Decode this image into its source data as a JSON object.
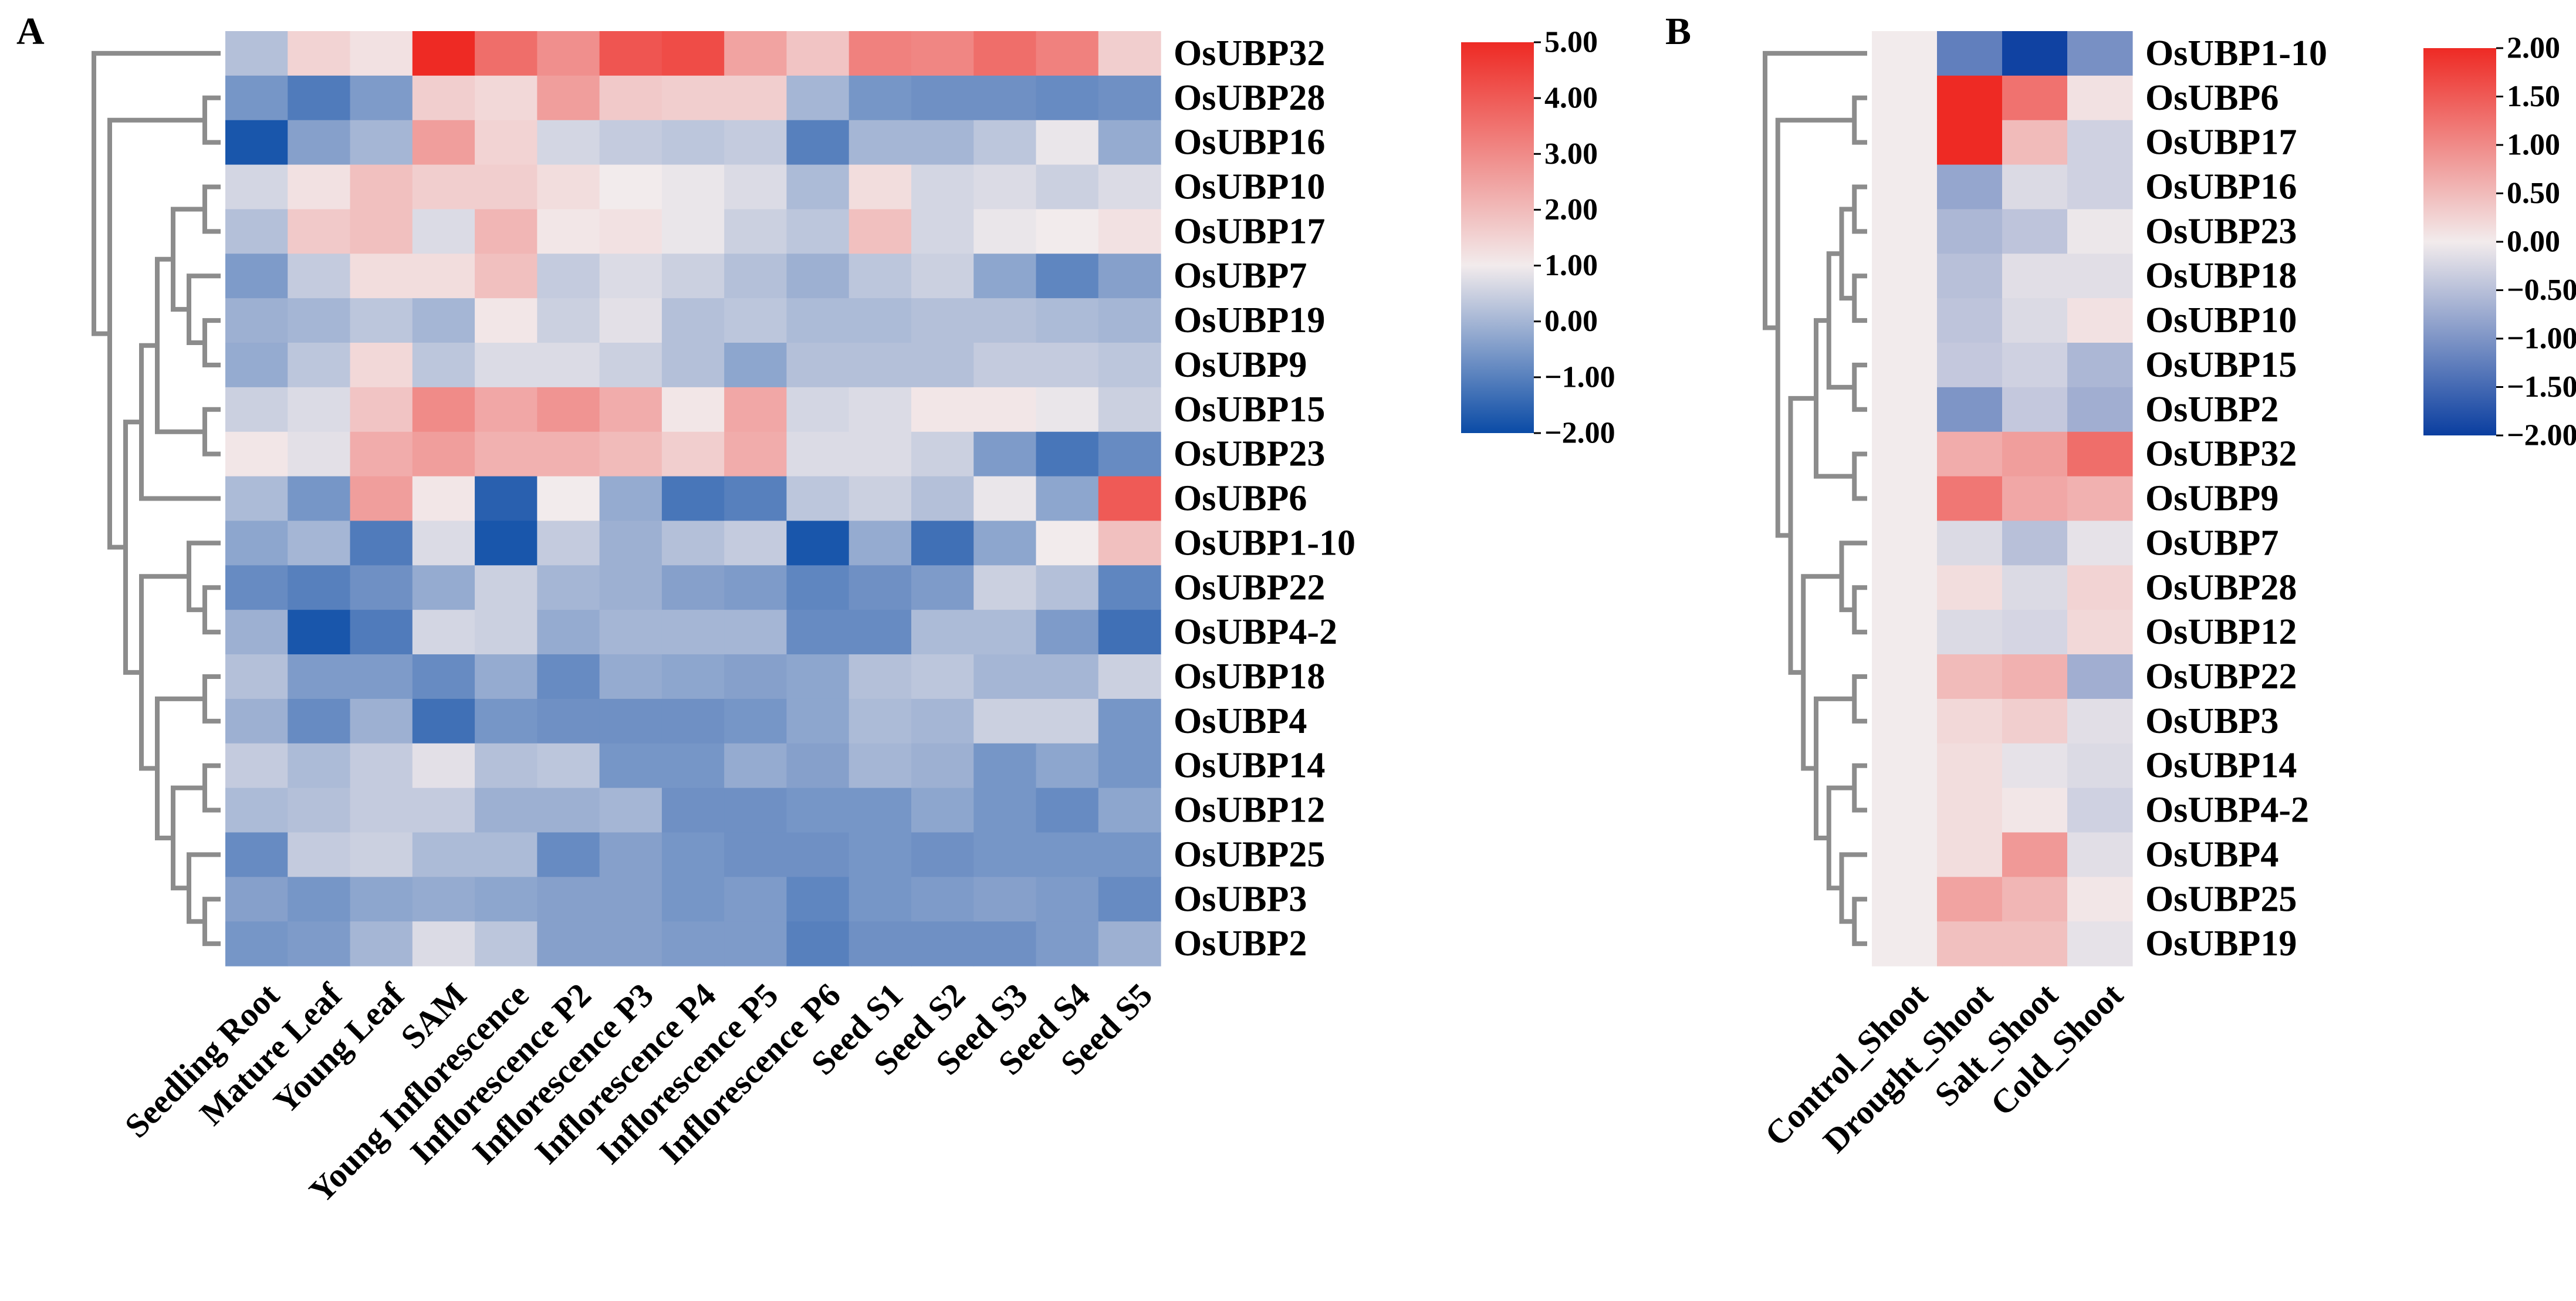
{
  "chart_data": [
    {
      "panel_label": "A",
      "type": "heatmap",
      "title": "",
      "xlabel": "",
      "ylabel": "",
      "columns": [
        "Seedling Root",
        "Mature Leaf",
        "Young Leaf",
        "SAM",
        "Young Inflorescence",
        "Inflorescence P2",
        "Inflorescence P3",
        "Inflorescence P4",
        "Inflorescence P5",
        "Inflorescence P6",
        "Seed S1",
        "Seed S2",
        "Seed S3",
        "Seed S4",
        "Seed S5"
      ],
      "rows": [
        "OsUBP32",
        "OsUBP28",
        "OsUBP16",
        "OsUBP10",
        "OsUBP17",
        "OsUBP7",
        "OsUBP19",
        "OsUBP9",
        "OsUBP15",
        "OsUBP23",
        "OsUBP6",
        "OsUBP1-10",
        "OsUBP22",
        "OsUBP4-2",
        "OsUBP18",
        "OsUBP4",
        "OsUBP14",
        "OsUBP12",
        "OsUBP25",
        "OsUBP3",
        "OsUBP2"
      ],
      "values": [
        [
          0.2,
          1.5,
          1.2,
          5.0,
          3.6,
          2.9,
          4.1,
          4.3,
          2.5,
          1.8,
          3.2,
          3.1,
          3.6,
          3.2,
          1.6
        ],
        [
          -0.6,
          -1.1,
          -0.5,
          1.6,
          1.4,
          2.6,
          1.7,
          1.6,
          1.6,
          0.0,
          -0.6,
          -0.7,
          -0.7,
          -0.8,
          -0.7
        ],
        [
          -1.8,
          -0.4,
          0.0,
          2.6,
          1.5,
          0.6,
          0.4,
          0.3,
          0.4,
          -1.0,
          0.0,
          0.0,
          0.3,
          0.9,
          -0.2
        ],
        [
          0.6,
          1.2,
          1.9,
          1.6,
          1.6,
          1.3,
          1.0,
          0.9,
          0.7,
          0.1,
          1.3,
          0.6,
          0.7,
          0.5,
          0.7
        ],
        [
          0.2,
          1.7,
          1.9,
          0.7,
          2.1,
          1.1,
          1.2,
          0.9,
          0.5,
          0.3,
          1.9,
          0.6,
          0.9,
          1.0,
          1.2
        ],
        [
          -0.5,
          0.4,
          1.3,
          1.3,
          1.9,
          0.4,
          0.7,
          0.5,
          0.2,
          -0.1,
          0.3,
          0.5,
          -0.3,
          -0.9,
          -0.4
        ],
        [
          -0.1,
          0.0,
          0.3,
          0.0,
          1.1,
          0.5,
          0.8,
          0.2,
          0.3,
          0.1,
          0.1,
          0.2,
          0.2,
          0.1,
          0.0
        ],
        [
          -0.2,
          0.3,
          1.4,
          0.3,
          0.7,
          0.7,
          0.5,
          0.2,
          -0.3,
          0.2,
          0.2,
          0.2,
          0.4,
          0.4,
          0.3
        ],
        [
          0.5,
          0.7,
          1.8,
          3.0,
          2.4,
          2.8,
          2.3,
          1.1,
          2.4,
          0.6,
          0.7,
          1.1,
          1.1,
          0.9,
          0.5
        ],
        [
          1.1,
          0.8,
          2.3,
          2.6,
          2.2,
          2.2,
          2.0,
          1.6,
          2.3,
          0.7,
          0.7,
          0.5,
          -0.5,
          -1.2,
          -0.8
        ],
        [
          0.1,
          -0.6,
          2.6,
          1.1,
          -1.6,
          1.0,
          -0.2,
          -1.2,
          -1.0,
          0.3,
          0.5,
          0.2,
          0.9,
          -0.3,
          4.0
        ],
        [
          -0.3,
          0.0,
          -1.1,
          0.7,
          -1.8,
          0.4,
          -0.1,
          0.2,
          0.4,
          -1.8,
          -0.2,
          -1.3,
          -0.3,
          1.0,
          1.9
        ],
        [
          -0.8,
          -1.0,
          -0.7,
          -0.2,
          0.5,
          0.0,
          -0.1,
          -0.4,
          -0.5,
          -0.9,
          -0.7,
          -0.5,
          0.5,
          0.2,
          -0.9
        ],
        [
          -0.1,
          -1.8,
          -1.1,
          0.6,
          0.5,
          -0.2,
          0.0,
          0.0,
          0.0,
          -0.8,
          -0.8,
          0.1,
          0.1,
          -0.5,
          -1.3
        ],
        [
          0.2,
          -0.5,
          -0.5,
          -0.8,
          -0.2,
          -0.8,
          -0.2,
          -0.3,
          -0.4,
          -0.3,
          0.2,
          0.3,
          0.0,
          0.0,
          0.5
        ],
        [
          -0.1,
          -0.8,
          -0.1,
          -1.3,
          -0.6,
          -0.7,
          -0.7,
          -0.7,
          -0.6,
          -0.3,
          0.1,
          0.0,
          0.5,
          0.5,
          -0.6
        ],
        [
          0.4,
          0.1,
          0.4,
          0.8,
          0.2,
          0.3,
          -0.6,
          -0.6,
          -0.2,
          -0.4,
          0.0,
          -0.1,
          -0.6,
          -0.3,
          -0.6
        ],
        [
          0.1,
          0.2,
          0.4,
          0.4,
          -0.1,
          -0.1,
          0.0,
          -0.7,
          -0.7,
          -0.6,
          -0.6,
          -0.3,
          -0.6,
          -0.8,
          -0.3
        ],
        [
          -0.8,
          0.4,
          0.5,
          0.1,
          0.1,
          -0.8,
          -0.4,
          -0.6,
          -0.7,
          -0.7,
          -0.6,
          -0.7,
          -0.6,
          -0.6,
          -0.6
        ],
        [
          -0.4,
          -0.6,
          -0.3,
          -0.2,
          -0.3,
          -0.4,
          -0.4,
          -0.6,
          -0.5,
          -0.9,
          -0.6,
          -0.5,
          -0.4,
          -0.5,
          -0.8
        ],
        [
          -0.6,
          -0.5,
          0.0,
          0.7,
          0.3,
          -0.4,
          -0.4,
          -0.5,
          -0.5,
          -1.0,
          -0.7,
          -0.7,
          -0.7,
          -0.5,
          -0.1
        ]
      ],
      "colorbar": {
        "min": -2.0,
        "max": 5.0,
        "ticks": [
          "5.00",
          "4.00",
          "3.00",
          "2.00",
          "1.00",
          "0.00",
          "−1.00",
          "−2.00"
        ],
        "low_color": "#0a4ba6",
        "mid_color": "#f2ebec",
        "high_color": "#ee2a24"
      }
    },
    {
      "panel_label": "B",
      "type": "heatmap",
      "title": "",
      "xlabel": "",
      "ylabel": "",
      "columns": [
        "Control_Shoot",
        "Drought_Shoot",
        "Salt_Shoot",
        "Cold_Shoot"
      ],
      "rows": [
        "OsUBP1-10",
        "OsUBP6",
        "OsUBP17",
        "OsUBP16",
        "OsUBP23",
        "OsUBP18",
        "OsUBP10",
        "OsUBP15",
        "OsUBP2",
        "OsUBP32",
        "OsUBP9",
        "OsUBP7",
        "OsUBP28",
        "OsUBP12",
        "OsUBP22",
        "OsUBP3",
        "OsUBP14",
        "OsUBP4-2",
        "OsUBP4",
        "OsUBP25",
        "OsUBP19"
      ],
      "values": [
        [
          0.0,
          -1.25,
          -1.95,
          -1.05
        ],
        [
          0.0,
          2.0,
          1.25,
          0.1
        ],
        [
          0.0,
          2.0,
          0.5,
          -0.3
        ],
        [
          0.0,
          -0.8,
          -0.2,
          -0.3
        ],
        [
          0.0,
          -0.6,
          -0.45,
          -0.05
        ],
        [
          0.0,
          -0.5,
          -0.15,
          -0.15
        ],
        [
          0.0,
          -0.45,
          -0.2,
          0.1
        ],
        [
          0.0,
          -0.4,
          -0.3,
          -0.6
        ],
        [
          0.0,
          -1.0,
          -0.4,
          -0.7
        ],
        [
          0.0,
          0.65,
          0.8,
          1.3
        ],
        [
          0.0,
          1.2,
          0.7,
          0.6
        ],
        [
          0.0,
          -0.2,
          -0.5,
          -0.1
        ],
        [
          0.0,
          0.15,
          -0.2,
          0.25
        ],
        [
          0.0,
          -0.2,
          -0.25,
          0.2
        ],
        [
          0.0,
          0.5,
          0.6,
          -0.7
        ],
        [
          0.0,
          0.2,
          0.3,
          -0.15
        ],
        [
          0.0,
          0.15,
          -0.1,
          -0.2
        ],
        [
          0.0,
          0.15,
          0.05,
          -0.3
        ],
        [
          0.0,
          0.15,
          0.85,
          -0.15
        ],
        [
          0.0,
          0.75,
          0.55,
          0.05
        ],
        [
          0.0,
          0.45,
          0.45,
          -0.1
        ]
      ],
      "colorbar": {
        "min": -2.0,
        "max": 2.0,
        "ticks": [
          "2.00",
          "1.50",
          "1.00",
          "0.50",
          "0.00",
          "−0.50",
          "−1.00",
          "−1.50",
          "−2.00"
        ],
        "low_color": "#0a3ea0",
        "mid_color": "#f2ebec",
        "high_color": "#ee2a24"
      }
    }
  ]
}
